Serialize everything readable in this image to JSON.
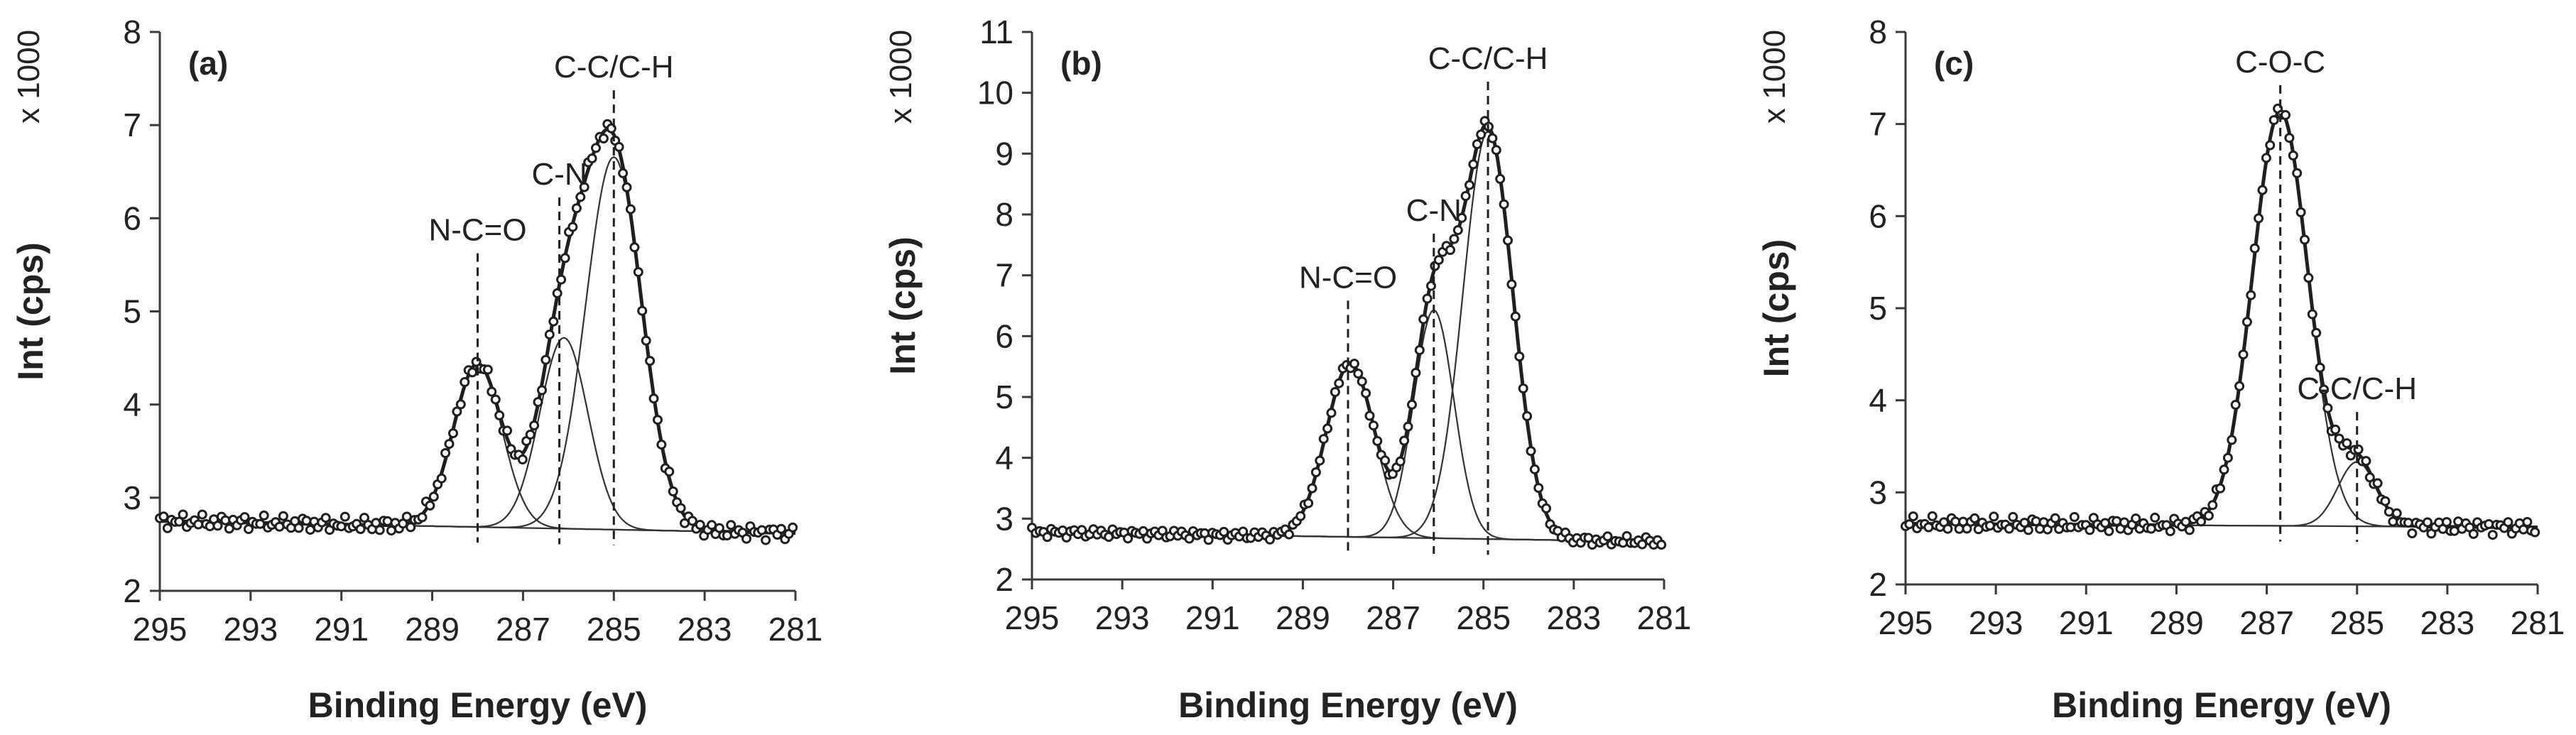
{
  "figure": {
    "x_axis_title": "Binding Energy (eV)",
    "y_axis_title": "Int (cps)",
    "scale_label": "x 1000"
  },
  "chart_data": [
    {
      "type": "line",
      "panel": "(a)",
      "xlabel": "Binding Energy (eV)",
      "ylabel": "Int (cps)",
      "y_scale": "x 1000",
      "xlim": [
        295,
        281
      ],
      "ylim": [
        2,
        8
      ],
      "x_ticks": [
        "295",
        "293",
        "291",
        "289",
        "287",
        "285",
        "283",
        "281"
      ],
      "y_ticks": [
        "2",
        "3",
        "4",
        "5",
        "6",
        "7",
        "8"
      ],
      "baseline": [
        [
          295,
          2.75
        ],
        [
          281,
          2.62
        ]
      ],
      "components": [
        {
          "name": "N-C=O",
          "center": 288.0,
          "height": 1.75,
          "fwhm": 1.25
        },
        {
          "name": "C-N",
          "center": 286.1,
          "height": 2.05,
          "fwhm": 1.25
        },
        {
          "name": "C-C/C-H",
          "center": 285.0,
          "height": 4.0,
          "fwhm": 1.45
        }
      ],
      "annotations": [
        {
          "text": "N-C=O",
          "x": 288.0,
          "y": 5.7
        },
        {
          "text": "C-N",
          "x": 286.2,
          "y": 6.3
        },
        {
          "text": "C-C/C-H",
          "x": 285.0,
          "y": 7.45
        }
      ]
    },
    {
      "type": "line",
      "panel": "(b)",
      "xlabel": "Binding Energy (eV)",
      "ylabel": "Int (cps)",
      "y_scale": "x 1000",
      "xlim": [
        295,
        281
      ],
      "ylim": [
        2,
        11
      ],
      "x_ticks": [
        "295",
        "293",
        "291",
        "289",
        "287",
        "285",
        "283",
        "281"
      ],
      "y_ticks": [
        "2",
        "3",
        "4",
        "5",
        "6",
        "7",
        "8",
        "9",
        "10",
        "11"
      ],
      "baseline": [
        [
          295,
          2.78
        ],
        [
          281,
          2.62
        ]
      ],
      "components": [
        {
          "name": "N-C=O",
          "center": 287.95,
          "height": 2.85,
          "fwhm": 1.25
        },
        {
          "name": "C-N",
          "center": 286.1,
          "height": 3.75,
          "fwhm": 1.05
        },
        {
          "name": "C-C/C-H",
          "center": 284.9,
          "height": 6.7,
          "fwhm": 1.3
        }
      ],
      "annotations": [
        {
          "text": "N-C=O",
          "x": 288.0,
          "y": 6.7
        },
        {
          "text": "C-N",
          "x": 286.1,
          "y": 7.8
        },
        {
          "text": "C-C/C-H",
          "x": 284.9,
          "y": 10.3
        }
      ]
    },
    {
      "type": "line",
      "panel": "(c)",
      "xlabel": "Binding Energy (eV)",
      "ylabel": "Int (cps)",
      "y_scale": "x 1000",
      "xlim": [
        295,
        281
      ],
      "ylim": [
        2,
        8
      ],
      "x_ticks": [
        "295",
        "293",
        "291",
        "289",
        "287",
        "285",
        "283",
        "281"
      ],
      "y_ticks": [
        "2",
        "3",
        "4",
        "5",
        "6",
        "7",
        "8"
      ],
      "baseline": [
        [
          295,
          2.66
        ],
        [
          281,
          2.62
        ]
      ],
      "components": [
        {
          "name": "C-O-C",
          "center": 286.7,
          "height": 4.5,
          "fwhm": 1.45
        },
        {
          "name": "C-C/C-H",
          "center": 285.0,
          "height": 0.7,
          "fwhm": 1.0
        }
      ],
      "annotations": [
        {
          "text": "C-O-C",
          "x": 286.7,
          "y": 7.5
        },
        {
          "text": "C-C/C-H",
          "x": 285.0,
          "y": 3.95
        }
      ]
    }
  ]
}
